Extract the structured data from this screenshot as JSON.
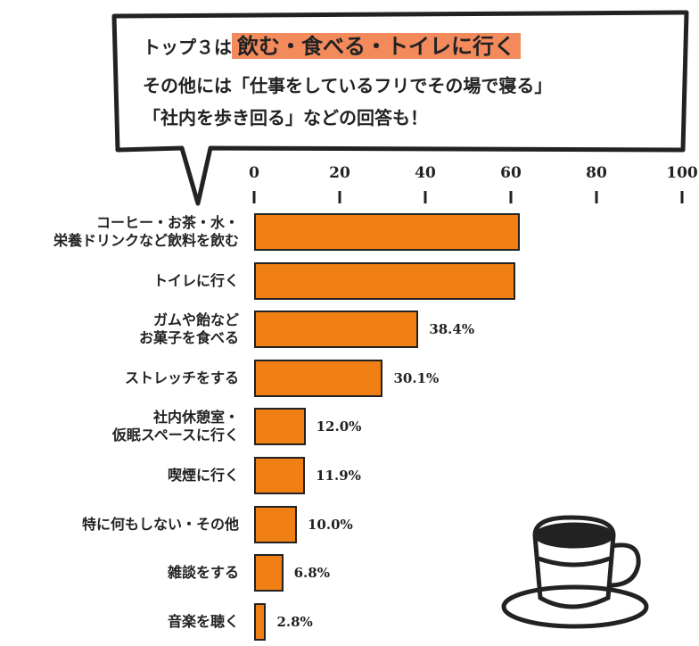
{
  "bubble": {
    "line1_prefix": "トップ３は",
    "line1_highlight": "飲む・食べる・トイレに行く",
    "line2": "その他には「仕事をしているフリでその場で寝る」",
    "line3": "「社内を歩き回る」などの回答も！"
  },
  "chart_data": {
    "type": "bar",
    "orientation": "horizontal",
    "categories": [
      "コーヒー・お茶・水・\n栄養ドリンクなど飲料を飲む",
      "トイレに行く",
      "ガムや飴など\nお菓子を食べる",
      "ストレッチをする",
      "社内休憩室・\n仮眠スペースに行く",
      "喫煙に行く",
      "特に何もしない・その他",
      "雑談をする",
      "音楽を聴く"
    ],
    "values": [
      62.1,
      61.0,
      38.4,
      30.1,
      12.0,
      11.9,
      10.0,
      6.8,
      2.8
    ],
    "value_labels": [
      null,
      null,
      "38.4%",
      "30.1%",
      "12.0%",
      "11.9%",
      "10.0%",
      "6.8%",
      "2.8%"
    ],
    "color": "#f07f14",
    "xlim": [
      0,
      100
    ],
    "xticks": [
      0,
      20,
      40,
      60,
      80,
      100
    ]
  }
}
